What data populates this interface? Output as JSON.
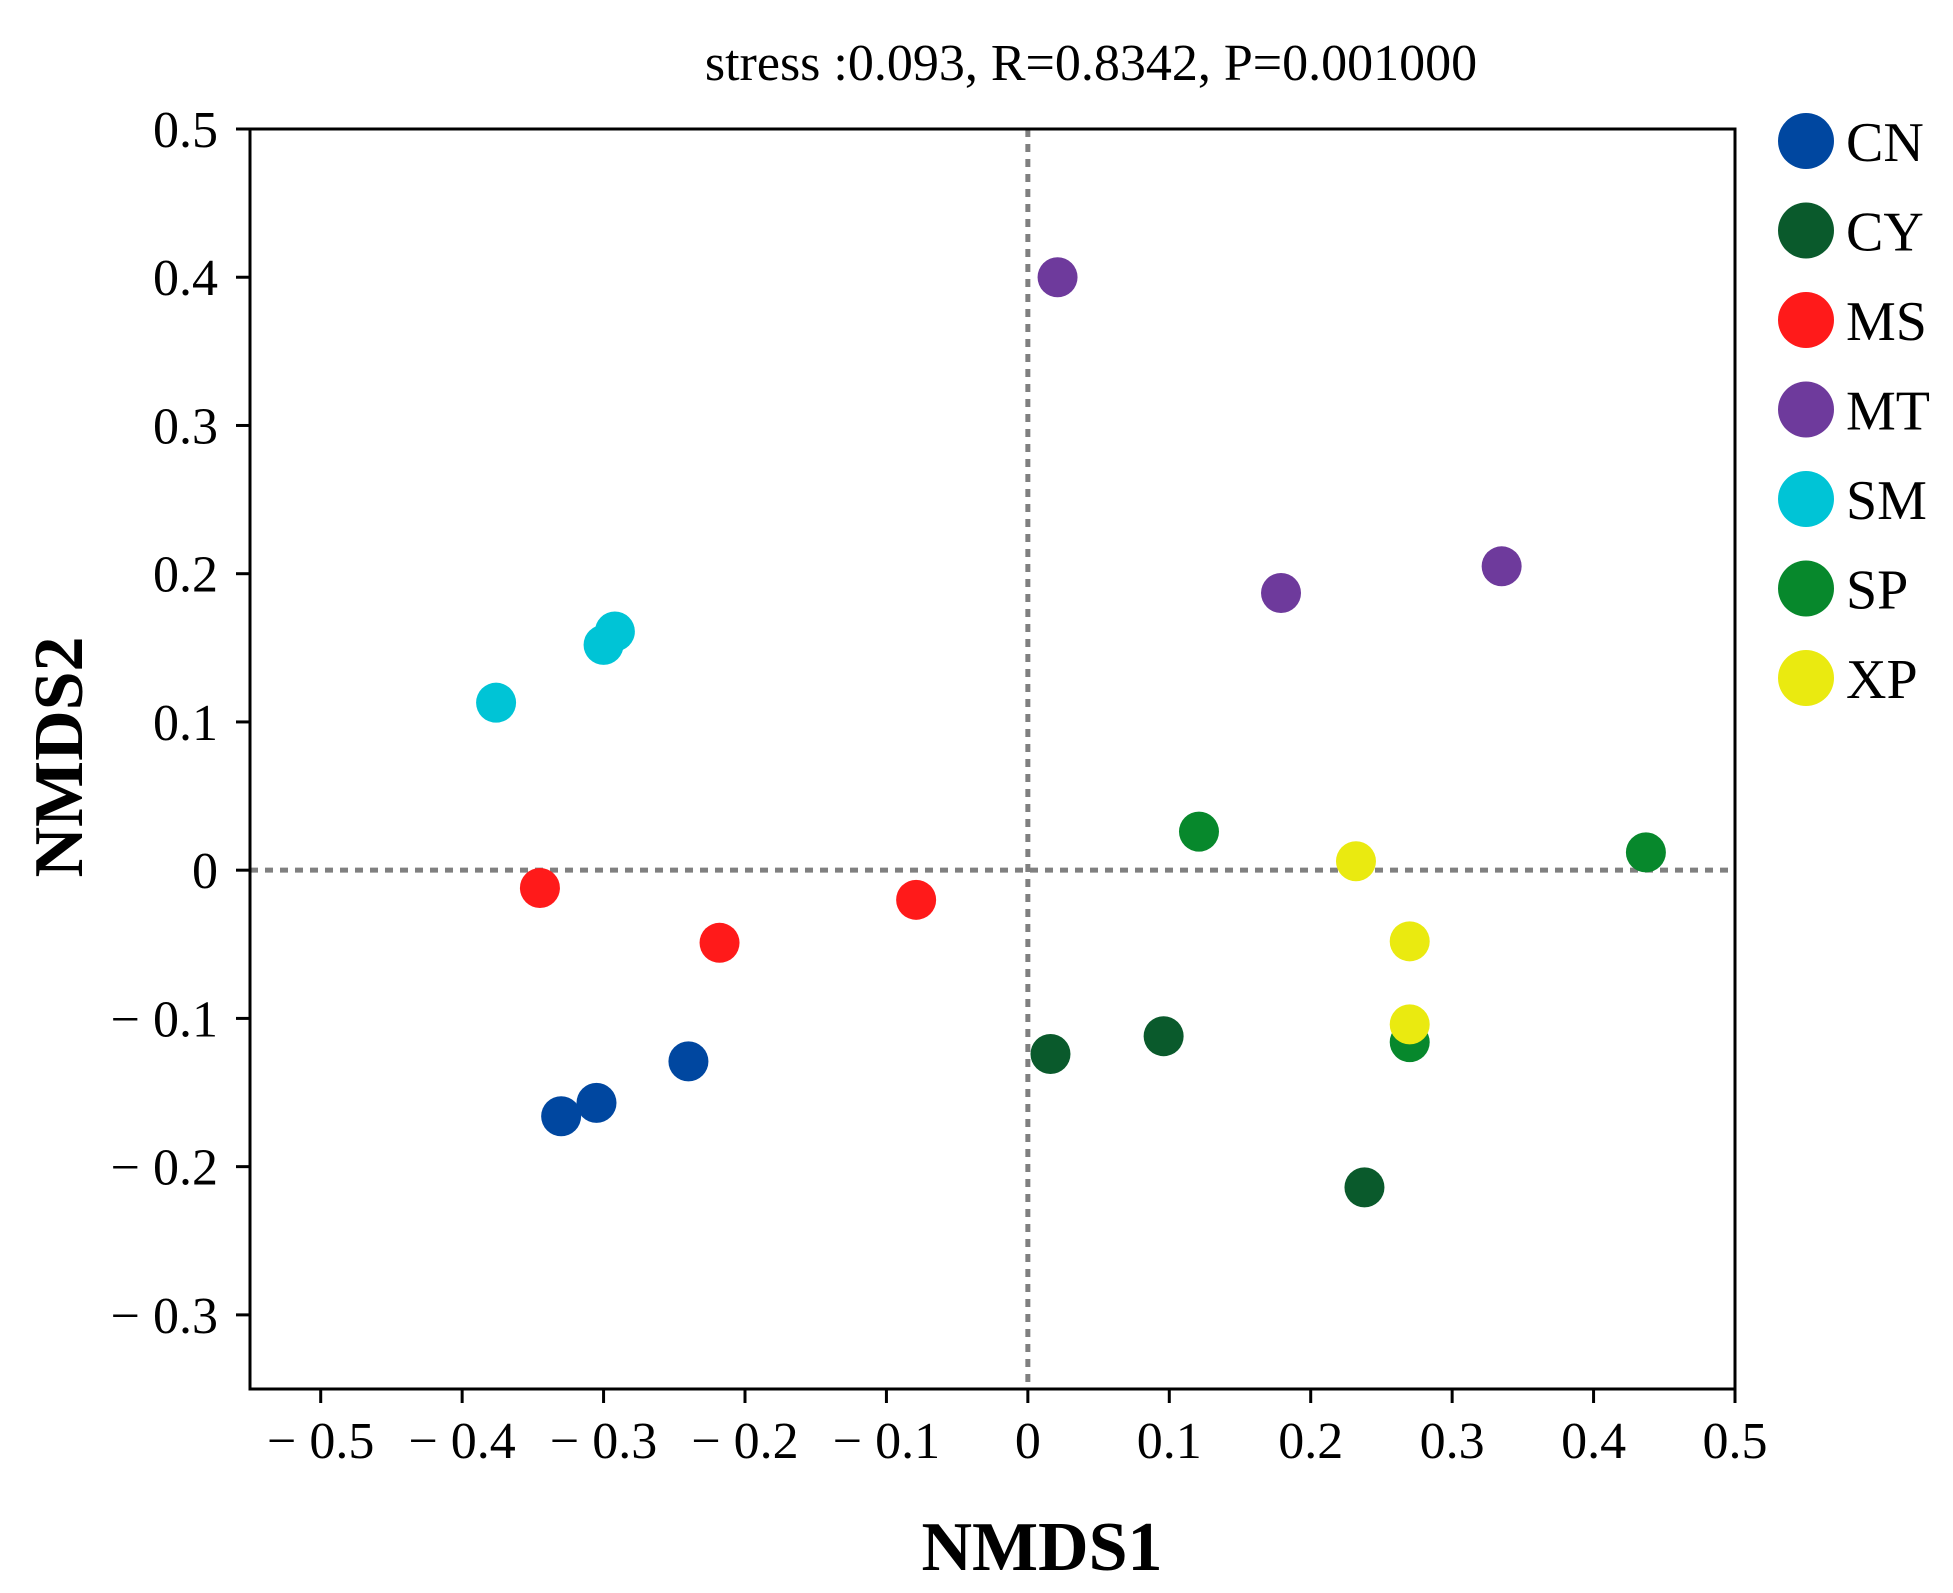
{
  "chart_data": {
    "type": "scatter",
    "title": "stress :0.093, R=0.8342, P=0.001000",
    "xlabel": "NMDS1",
    "ylabel": "NMDS2",
    "xlim": [
      -0.55,
      0.5
    ],
    "ylim": [
      -0.35,
      0.5
    ],
    "xticks": [
      -0.5,
      -0.4,
      -0.3,
      -0.2,
      -0.1,
      0,
      0.1,
      0.2,
      0.3,
      0.4,
      0.5
    ],
    "xtick_labels": [
      "− 0.5",
      "− 0.4",
      "− 0.3",
      "− 0.2",
      "− 0.1",
      "0",
      "0.1",
      "0.2",
      "0.3",
      "0.4",
      "0.5"
    ],
    "yticks": [
      0.5,
      0.4,
      0.3,
      0.2,
      0.1,
      0,
      -0.1,
      -0.2,
      -0.3
    ],
    "ytick_labels": [
      "0.5",
      "0.4",
      "0.3",
      "0.2",
      "0.1",
      "0",
      "− 0.1",
      "− 0.2",
      "− 0.3"
    ],
    "reference_lines": {
      "x": 0,
      "y": 0,
      "style": "dotted",
      "color": "#808080"
    },
    "legend_position": "right",
    "series": [
      {
        "name": "CN",
        "color": "#0047a0",
        "points": [
          [
            -0.33,
            -0.166
          ],
          [
            -0.305,
            -0.157
          ],
          [
            -0.24,
            -0.129
          ]
        ]
      },
      {
        "name": "CY",
        "color": "#0a5a2c",
        "points": [
          [
            0.016,
            -0.124
          ],
          [
            0.096,
            -0.112
          ],
          [
            0.238,
            -0.214
          ]
        ]
      },
      {
        "name": "MS",
        "color": "#ff1a1a",
        "points": [
          [
            -0.345,
            -0.012
          ],
          [
            -0.218,
            -0.049
          ],
          [
            -0.079,
            -0.02
          ]
        ]
      },
      {
        "name": "MT",
        "color": "#6e3a9c",
        "points": [
          [
            0.021,
            0.4
          ],
          [
            0.179,
            0.187
          ],
          [
            0.335,
            0.205
          ]
        ]
      },
      {
        "name": "SM",
        "color": "#00c4d6",
        "points": [
          [
            -0.376,
            0.113
          ],
          [
            -0.3,
            0.152
          ],
          [
            -0.292,
            0.161
          ]
        ]
      },
      {
        "name": "SP",
        "color": "#07882c",
        "points": [
          [
            0.121,
            0.026
          ],
          [
            0.437,
            0.012
          ],
          [
            0.27,
            -0.116
          ]
        ]
      },
      {
        "name": "XP",
        "color": "#eaea10",
        "points": [
          [
            0.232,
            0.006
          ],
          [
            0.27,
            -0.048
          ],
          [
            0.27,
            -0.104
          ]
        ]
      }
    ]
  }
}
